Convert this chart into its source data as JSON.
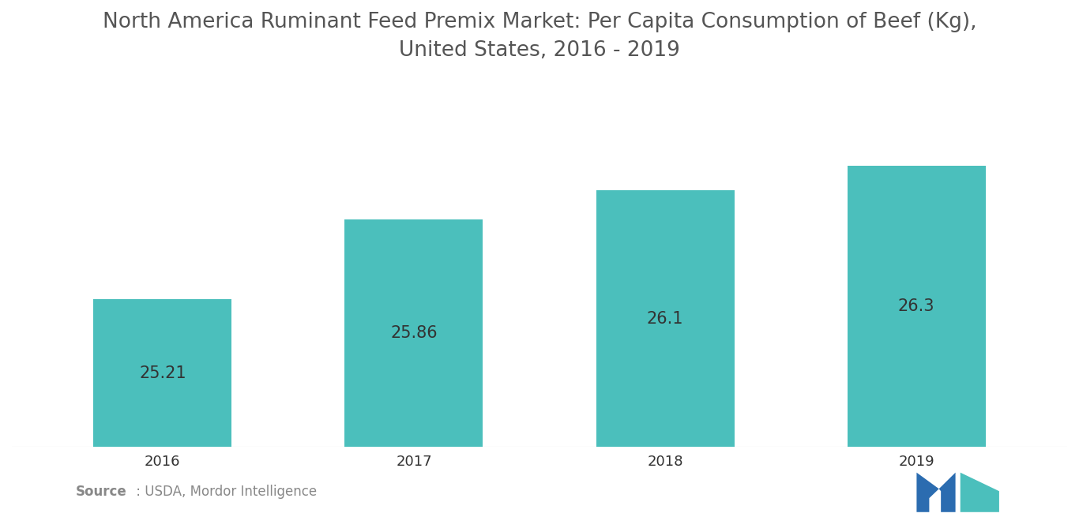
{
  "title": "North America Ruminant Feed Premix Market: Per Capita Consumption of Beef (Kg),\nUnited States, 2016 - 2019",
  "categories": [
    "2016",
    "2017",
    "2018",
    "2019"
  ],
  "values": [
    25.21,
    25.86,
    26.1,
    26.3
  ],
  "bar_color": "#4BBFBC",
  "background_color": "#ffffff",
  "label_color": "#333333",
  "title_color": "#555555",
  "source_bold": "Source",
  "source_normal": " : USDA, Mordor Intelligence",
  "source_color": "#888888",
  "ylim": [
    24.0,
    27.0
  ],
  "title_fontsize": 19,
  "label_fontsize": 15,
  "tick_fontsize": 13,
  "bar_width": 0.55,
  "logo_left_color": "#2B6CB0",
  "logo_right_color": "#4BBFBC"
}
